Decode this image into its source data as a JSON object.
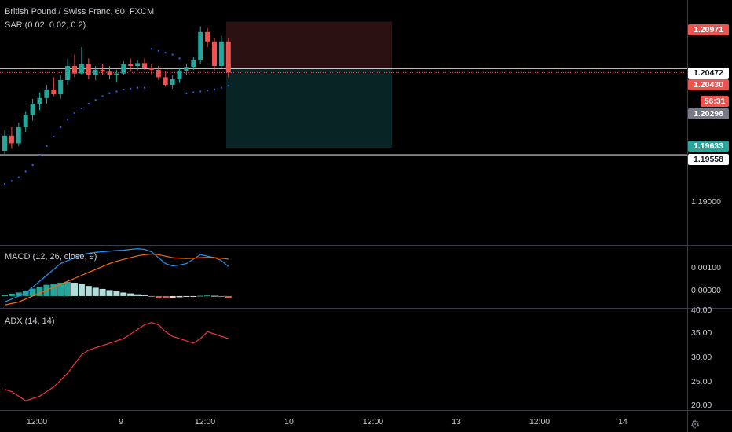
{
  "header": {
    "symbol_title": "British Pound / Swiss Franc, 60, FXCM",
    "sar_legend": "SAR (0.02, 0.02, 0.2)"
  },
  "macd": {
    "legend": "MACD (12, 26, close, 9)"
  },
  "adx": {
    "legend": "ADX (14, 14)"
  },
  "price_axis": {
    "tags": {
      "stop": "1.20971",
      "entry": "1.20472",
      "last": "1.20430",
      "countdown": "56:31",
      "sar": "1.20298",
      "target": "1.19633",
      "line": "1.19558"
    },
    "ticks": [
      "1.19000"
    ]
  },
  "macd_axis": {
    "ticks": [
      "0.00100",
      "0.00000"
    ]
  },
  "adx_axis": {
    "ticks": [
      "40.00",
      "35.00",
      "30.00",
      "25.00",
      "20.00"
    ]
  },
  "time_axis": {
    "labels": [
      "12:00",
      "9",
      "12:00",
      "10",
      "12:00",
      "13",
      "12:00",
      "14"
    ]
  },
  "colors": {
    "up": "#26a69a",
    "down": "#ef5350",
    "stop_zone": "#2a1010",
    "target_zone": "#082424",
    "macd_line": "#2196f3",
    "signal_line": "#ff6d00",
    "adx_line": "#f23645"
  },
  "chart_data": [
    {
      "type": "candlestick",
      "title": "British Pound / Swiss Franc, 60, FXCM",
      "ylim": [
        1.186,
        1.212
      ],
      "ohlc": [
        [
          1.196,
          1.1982,
          1.1955,
          1.1976
        ],
        [
          1.1976,
          1.1985,
          1.1962,
          1.1968
        ],
        [
          1.1968,
          1.199,
          1.1965,
          1.1985
        ],
        [
          1.1985,
          1.2002,
          1.198,
          1.1998
        ],
        [
          1.1998,
          1.2015,
          1.1992,
          1.201
        ],
        [
          1.201,
          1.2022,
          1.2003,
          1.2016
        ],
        [
          1.2016,
          1.203,
          1.201,
          1.2025
        ],
        [
          1.2025,
          1.2038,
          1.2018,
          1.202
        ],
        [
          1.202,
          1.204,
          1.2015,
          1.2035
        ],
        [
          1.2035,
          1.2058,
          1.203,
          1.205
        ],
        [
          1.205,
          1.2062,
          1.2038,
          1.2042
        ],
        [
          1.2042,
          1.207,
          1.204,
          1.2052
        ],
        [
          1.2052,
          1.2058,
          1.2036,
          1.204
        ],
        [
          1.204,
          1.205,
          1.2035,
          1.2046
        ],
        [
          1.2046,
          1.2052,
          1.204,
          1.2044
        ],
        [
          1.2044,
          1.205,
          1.2036,
          1.204
        ],
        [
          1.204,
          1.2046,
          1.2033,
          1.2042
        ],
        [
          1.2042,
          1.2055,
          1.204,
          1.2052
        ],
        [
          1.2052,
          1.2058,
          1.2044,
          1.205
        ],
        [
          1.205,
          1.2056,
          1.2045,
          1.2053
        ],
        [
          1.2053,
          1.2058,
          1.2046,
          1.2048
        ],
        [
          1.2048,
          1.2052,
          1.204,
          1.2046
        ],
        [
          1.2046,
          1.205,
          1.2035,
          1.2038
        ],
        [
          1.2038,
          1.2045,
          1.2028,
          1.203
        ],
        [
          1.203,
          1.204,
          1.2026,
          1.2036
        ],
        [
          1.2036,
          1.2048,
          1.2032,
          1.2045
        ],
        [
          1.2045,
          1.2052,
          1.204,
          1.2049
        ],
        [
          1.2049,
          1.206,
          1.2046,
          1.2056
        ],
        [
          1.2056,
          1.2092,
          1.2052,
          1.2086
        ],
        [
          1.2086,
          1.209,
          1.207,
          1.2076
        ],
        [
          1.2076,
          1.208,
          1.2045,
          1.205
        ],
        [
          1.205,
          1.2082,
          1.2048,
          1.2076
        ],
        [
          1.2076,
          1.208,
          1.2038,
          1.2043
        ]
      ],
      "sar": [
        1.1925,
        1.1928,
        1.1932,
        1.1938,
        1.1945,
        1.1955,
        1.1965,
        1.1975,
        1.1985,
        1.1993,
        1.2,
        1.2005,
        1.201,
        1.2014,
        1.2018,
        1.2021,
        1.2023,
        1.2025,
        1.2026,
        1.2027,
        1.2027,
        1.2068,
        1.2066,
        1.2064,
        1.2062,
        1.2058,
        1.2021,
        1.2022,
        1.2023,
        1.2024,
        1.2025,
        1.2027,
        1.2029
      ],
      "position": {
        "entry": 1.20472,
        "stop": 1.20971,
        "target": 1.19633
      },
      "horizontal_line": 1.19558
    },
    {
      "type": "bar",
      "title": "MACD (12, 26, close, 9)",
      "ylim": [
        -0.0004,
        0.0017
      ],
      "histogram": [
        5e-05,
        8e-05,
        0.00012,
        0.00018,
        0.00025,
        0.00032,
        0.00038,
        0.00042,
        0.00045,
        0.00048,
        0.00045,
        0.0004,
        0.00034,
        0.00028,
        0.00024,
        0.0002,
        0.00016,
        0.00012,
        9e-05,
        6e-05,
        3e-05,
        -2e-05,
        -6e-05,
        -8e-05,
        -6e-05,
        -4e-05,
        -2e-05,
        -1e-05,
        1e-05,
        2e-05,
        1e-05,
        -2e-05,
        -6e-05
      ],
      "macd_line": [
        -0.0002,
        -0.0001,
        0.0,
        0.0001,
        0.0003,
        0.0005,
        0.0007,
        0.0009,
        0.0011,
        0.0012,
        0.0013,
        0.0014,
        0.00145,
        0.00148,
        0.0015,
        0.00152,
        0.00154,
        0.00155,
        0.00158,
        0.0016,
        0.00158,
        0.0015,
        0.0013,
        0.0011,
        0.00102,
        0.00105,
        0.0011,
        0.00125,
        0.0014,
        0.00135,
        0.0013,
        0.0012,
        0.001
      ],
      "signal_line": [
        -0.0003,
        -0.00025,
        -0.0002,
        -0.0001,
        0.0,
        0.0001,
        0.0002,
        0.0003,
        0.0004,
        0.0005,
        0.0006,
        0.0007,
        0.0008,
        0.0009,
        0.001,
        0.0011,
        0.00118,
        0.00124,
        0.0013,
        0.00136,
        0.0014,
        0.00142,
        0.0014,
        0.00135,
        0.0013,
        0.00128,
        0.00127,
        0.00128,
        0.0013,
        0.00131,
        0.0013,
        0.00128,
        0.00125
      ]
    },
    {
      "type": "line",
      "title": "ADX (14, 14)",
      "ylim": [
        19,
        41
      ],
      "x": [
        0,
        1,
        2,
        3,
        4,
        5,
        6,
        7,
        8,
        9,
        10,
        11,
        12,
        13,
        14,
        15,
        16,
        17,
        18,
        19,
        20,
        21,
        22,
        23,
        24,
        25,
        26,
        27,
        28,
        29,
        30,
        31,
        32
      ],
      "values": [
        23.5,
        23.0,
        22.0,
        21.0,
        21.5,
        22.0,
        23.0,
        24.0,
        25.5,
        27.0,
        29.0,
        31.0,
        32.0,
        32.5,
        33.0,
        33.5,
        34.0,
        34.5,
        35.5,
        36.5,
        37.5,
        38.0,
        37.5,
        36.0,
        35.0,
        34.5,
        34.0,
        33.5,
        34.5,
        36.0,
        35.5,
        35.0,
        34.5
      ]
    }
  ]
}
